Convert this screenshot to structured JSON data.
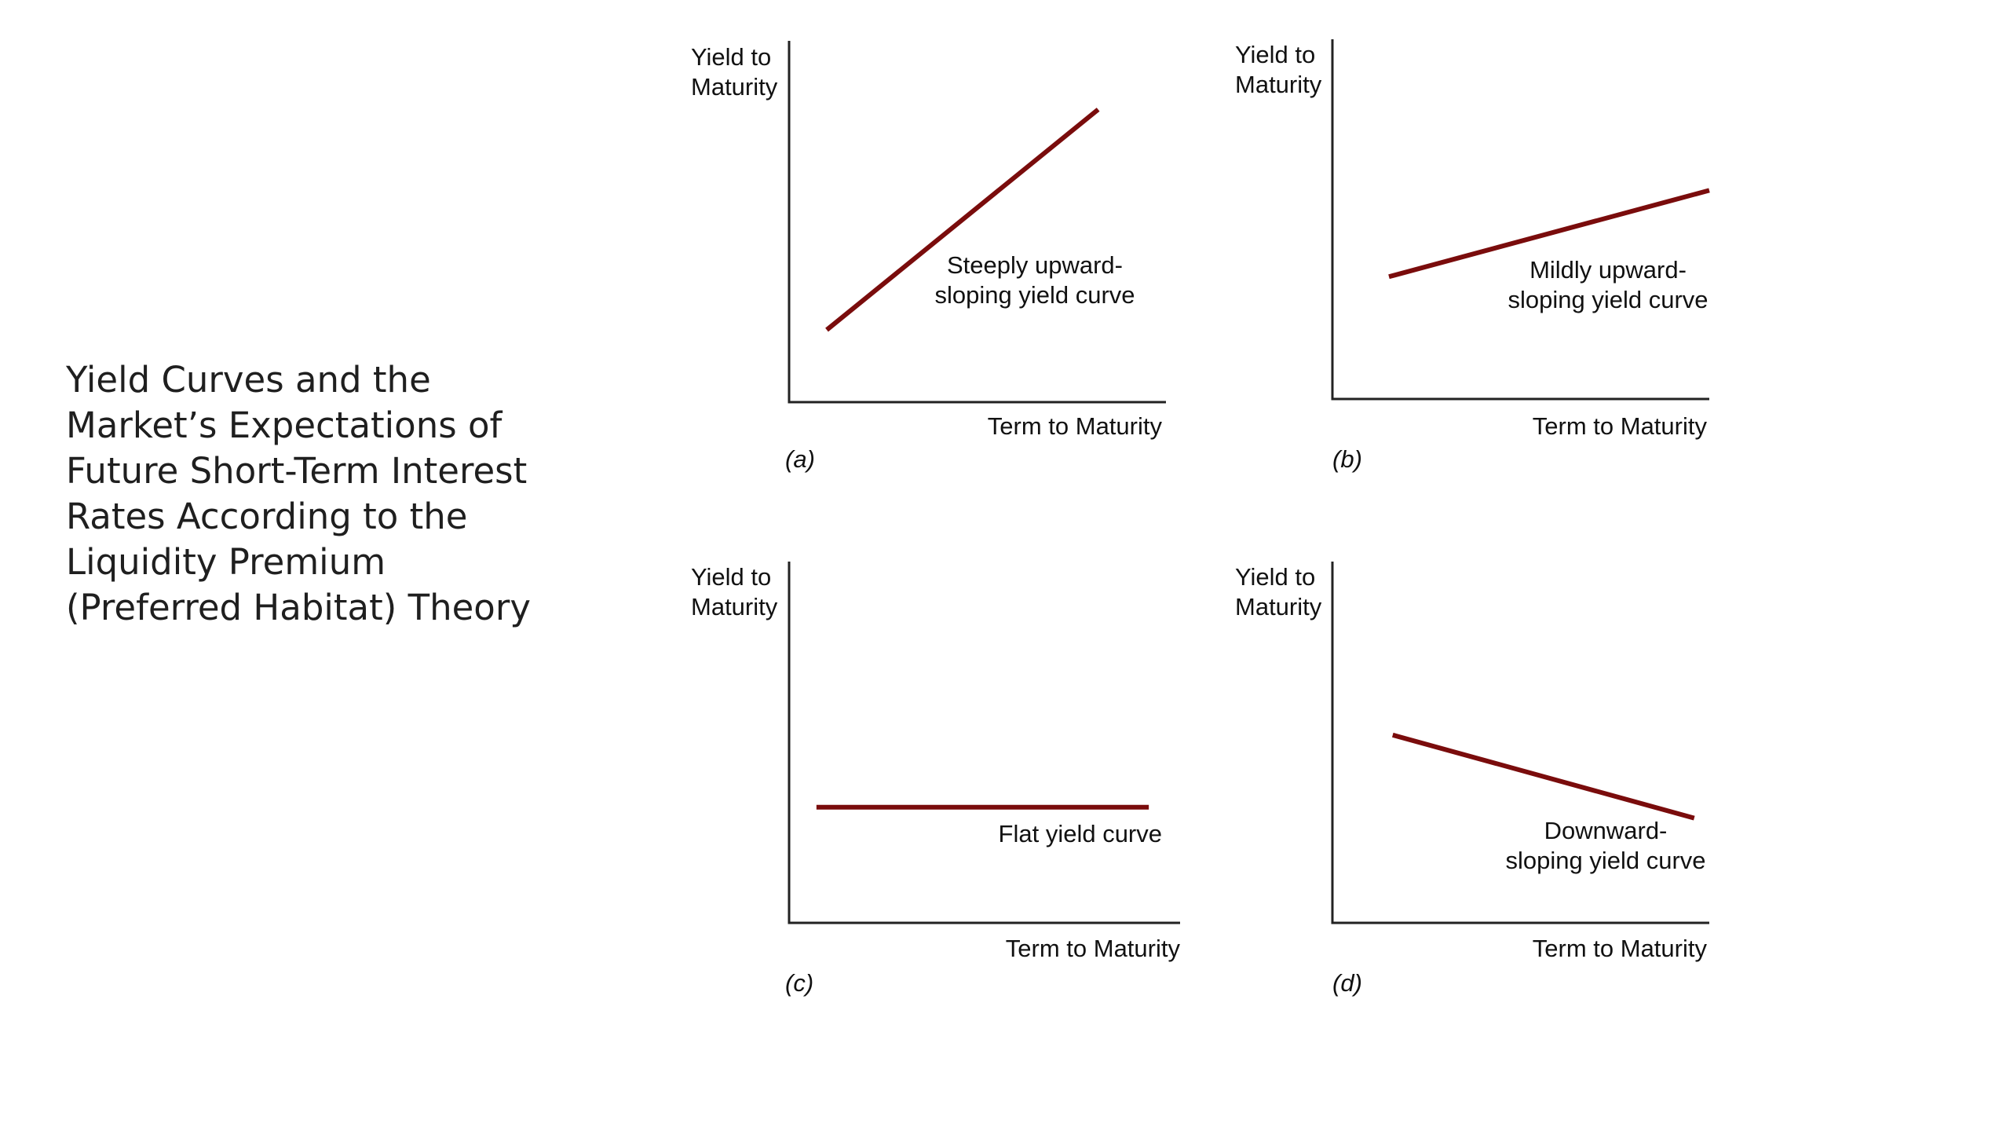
{
  "slide": {
    "title": "Yield Curves and the Market’s Expectations of Future Short-Term Interest Rates According to the Liquidity Premium (Preferred Habitat) Theory"
  },
  "colors": {
    "curve": "#7a0c0c",
    "axis": "#222222",
    "text": "#111111"
  },
  "chart_data": [
    {
      "type": "line",
      "panel": "(a)",
      "ylabel": [
        "Yield to",
        "Maturity"
      ],
      "xlabel": "Term to Maturity",
      "annotation": [
        "Steeply upward-",
        "sloping yield curve"
      ],
      "x": [
        0.1,
        0.82
      ],
      "y": [
        0.2,
        0.81
      ],
      "xlim": [
        0,
        1
      ],
      "ylim": [
        0,
        1
      ],
      "grid": false
    },
    {
      "type": "line",
      "panel": "(b)",
      "ylabel": [
        "Yield to",
        "Maturity"
      ],
      "xlabel": "Term to Maturity",
      "annotation": [
        "Mildly upward-",
        "sloping yield curve"
      ],
      "x": [
        0.15,
        1.0
      ],
      "y": [
        0.34,
        0.58
      ],
      "xlim": [
        0,
        1
      ],
      "ylim": [
        0,
        1
      ],
      "grid": false
    },
    {
      "type": "line",
      "panel": "(c)",
      "ylabel": [
        "Yield to",
        "Maturity"
      ],
      "xlabel": "Term to Maturity",
      "annotation": [
        "Flat yield curve"
      ],
      "x": [
        0.07,
        0.92
      ],
      "y": [
        0.32,
        0.32
      ],
      "xlim": [
        0,
        1
      ],
      "ylim": [
        0,
        1
      ],
      "grid": false
    },
    {
      "type": "line",
      "panel": "(d)",
      "ylabel": [
        "Yield to",
        "Maturity"
      ],
      "xlabel": "Term to Maturity",
      "annotation": [
        "Downward-",
        "sloping yield curve"
      ],
      "x": [
        0.16,
        0.96
      ],
      "y": [
        0.52,
        0.29
      ],
      "xlim": [
        0,
        1
      ],
      "ylim": [
        0,
        1
      ],
      "grid": false
    }
  ]
}
